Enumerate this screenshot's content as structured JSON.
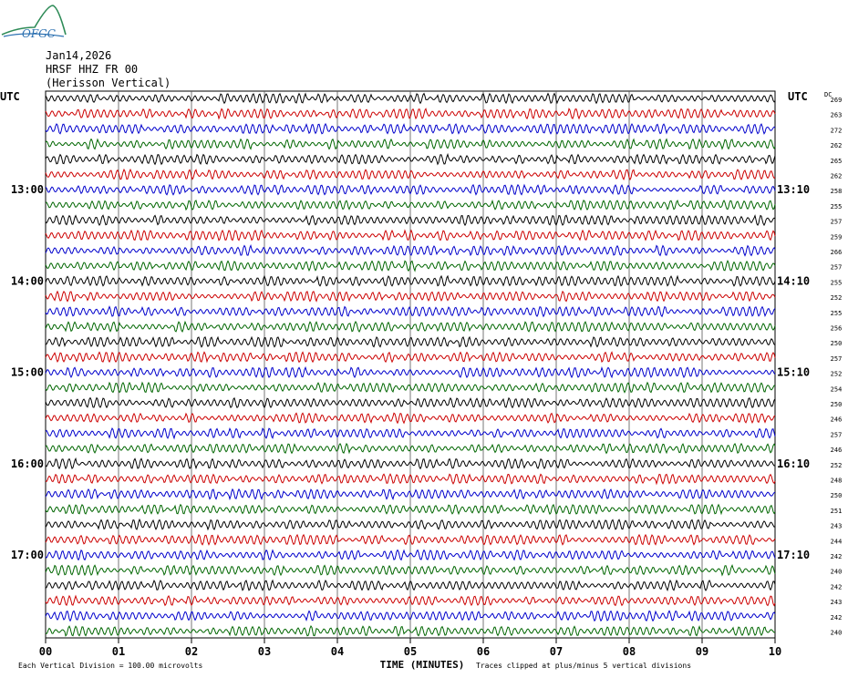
{
  "logo": {
    "text": "OFGC",
    "color": "#2a6fb0",
    "accent": "#2e8b57"
  },
  "header": {
    "date": "Jan14,2026",
    "station": "HRSF HHZ FR 00",
    "site": "(Herisson Vertical)"
  },
  "chart_data": {
    "type": "line",
    "description_axes": "helicorder",
    "xlabel": "TIME (MINUTES)",
    "xlim": [
      0,
      10
    ],
    "x_ticks": [
      "00",
      "01",
      "02",
      "03",
      "04",
      "05",
      "06",
      "07",
      "08",
      "09",
      "10"
    ],
    "left_axis_title": "UTC",
    "right_axis_title": "UTC",
    "dc_title": "DC",
    "left_time_labels": [
      {
        "row": 6,
        "text": "13:00"
      },
      {
        "row": 12,
        "text": "14:00"
      },
      {
        "row": 18,
        "text": "15:00"
      },
      {
        "row": 24,
        "text": "16:00"
      },
      {
        "row": 30,
        "text": "17:00"
      }
    ],
    "right_time_labels": [
      {
        "row": 6,
        "text": "13:10"
      },
      {
        "row": 12,
        "text": "14:10"
      },
      {
        "row": 18,
        "text": "15:10"
      },
      {
        "row": 24,
        "text": "16:10"
      },
      {
        "row": 30,
        "text": "17:10"
      }
    ],
    "trace_colors": [
      "#000000",
      "#cc0000",
      "#0000cc",
      "#006600"
    ],
    "dc_values": [
      "269",
      "263",
      "272",
      "262",
      "265",
      "262",
      "258",
      "255",
      "257",
      "259",
      "266",
      "257",
      "255",
      "252",
      "255",
      "256",
      "250",
      "257",
      "252",
      "254",
      "250",
      "246",
      "257",
      "246",
      "252",
      "248",
      "250",
      "251",
      "243",
      "244",
      "242",
      "240",
      "242",
      "243",
      "242",
      "240"
    ],
    "footer_left": "Each Vertical Division =  100.00 microvolts",
    "footer_right": "Traces clipped at plus/minus 5 vertical divisions"
  }
}
